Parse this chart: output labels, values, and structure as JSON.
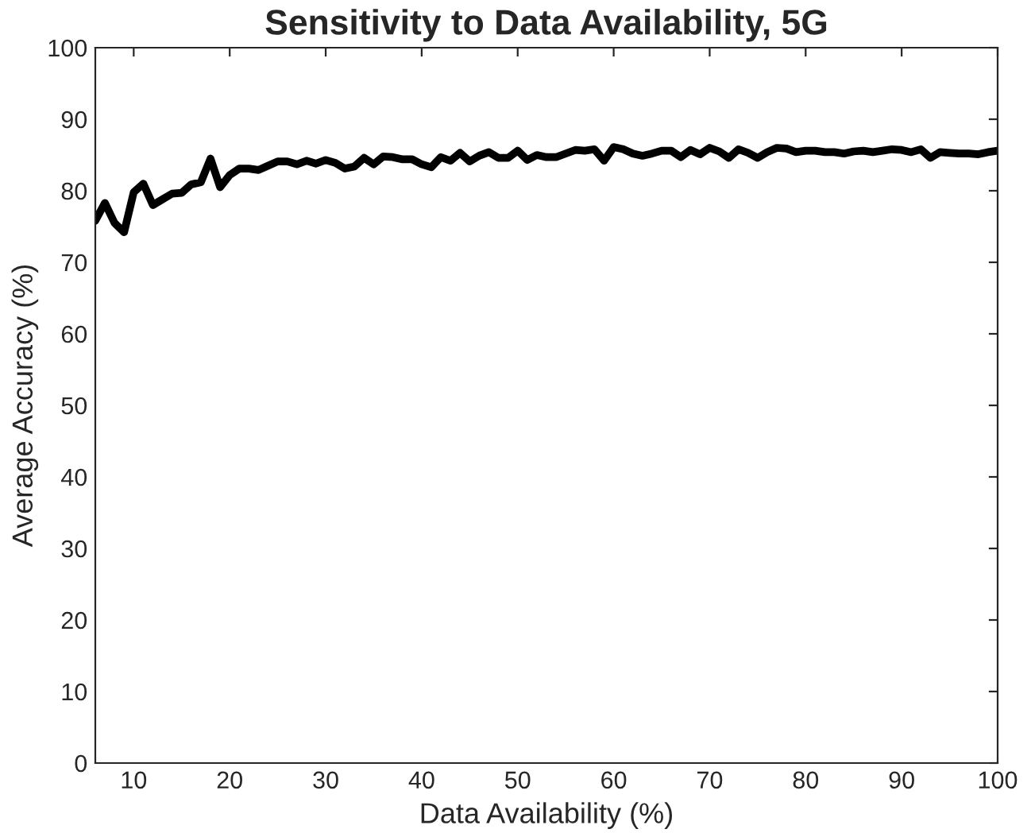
{
  "chart_data": {
    "type": "line",
    "title": "Sensitivity to Data Availability, 5G",
    "xlabel": "Data Availability (%)",
    "ylabel": "Average Accuracy (%)",
    "x": [
      6,
      7,
      8,
      9,
      10,
      11,
      12,
      13,
      14,
      15,
      16,
      17,
      18,
      19,
      20,
      21,
      22,
      23,
      24,
      25,
      26,
      27,
      28,
      29,
      30,
      31,
      32,
      33,
      34,
      35,
      36,
      37,
      38,
      39,
      40,
      41,
      42,
      43,
      44,
      45,
      46,
      47,
      48,
      49,
      50,
      51,
      52,
      53,
      54,
      55,
      56,
      57,
      58,
      59,
      60,
      61,
      62,
      63,
      64,
      65,
      66,
      67,
      68,
      69,
      70,
      71,
      72,
      73,
      74,
      75,
      76,
      77,
      78,
      79,
      80,
      81,
      82,
      83,
      84,
      85,
      86,
      87,
      88,
      89,
      90,
      91,
      92,
      93,
      94,
      95,
      96,
      97,
      98,
      99,
      100
    ],
    "series": [
      {
        "color": "#000000",
        "values": [
          75.8,
          78.3,
          75.5,
          74.2,
          79.8,
          81,
          78,
          78.8,
          79.6,
          79.7,
          80.9,
          81.2,
          84.5,
          80.5,
          82.2,
          83.1,
          83.1,
          82.9,
          83.5,
          84.1,
          84.1,
          83.7,
          84.2,
          83.8,
          84.3,
          83.9,
          83.1,
          83.4,
          84.6,
          83.7,
          84.8,
          84.7,
          84.4,
          84.4,
          83.7,
          83.3,
          84.7,
          84.2,
          85.3,
          84.1,
          84.9,
          85.4,
          84.6,
          84.6,
          85.6,
          84.3,
          85,
          84.7,
          84.7,
          85.2,
          85.7,
          85.6,
          85.8,
          84.2,
          86.1,
          85.8,
          85.2,
          84.9,
          85.2,
          85.6,
          85.6,
          84.7,
          85.7,
          85.1,
          86,
          85.5,
          84.6,
          85.8,
          85.3,
          84.6,
          85.4,
          86,
          85.9,
          85.4,
          85.6,
          85.6,
          85.4,
          85.4,
          85.2,
          85.5,
          85.6,
          85.4,
          85.6,
          85.8,
          85.7,
          85.4,
          85.8,
          84.6,
          85.4,
          85.3,
          85.2,
          85.2,
          85.1,
          85.4,
          85.6
        ]
      }
    ],
    "xlim": [
      6,
      100
    ],
    "ylim": [
      0,
      100
    ],
    "xticks": [
      10,
      20,
      30,
      40,
      50,
      60,
      70,
      80,
      90,
      100
    ],
    "yticks": [
      0,
      10,
      20,
      30,
      40,
      50,
      60,
      70,
      80,
      90,
      100
    ],
    "grid": false,
    "legend": false,
    "marker": "none",
    "line_style": "solid"
  }
}
